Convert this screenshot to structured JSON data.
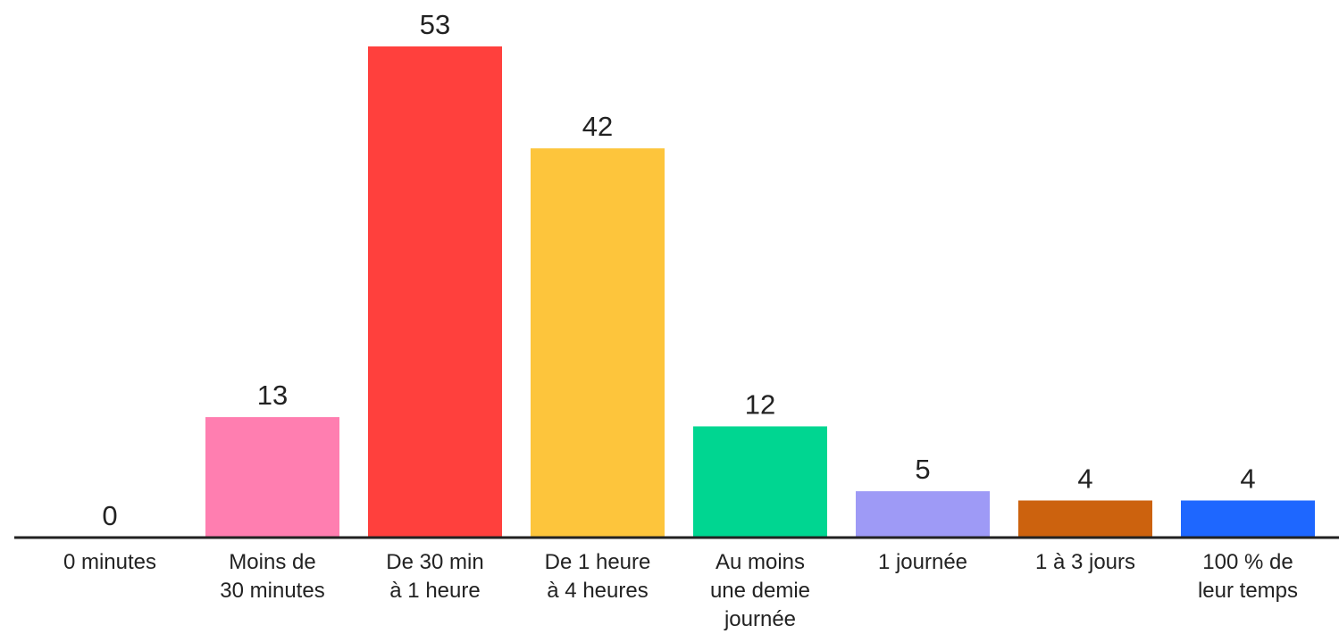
{
  "chart_data": {
    "type": "bar",
    "title": "",
    "xlabel": "",
    "ylabel": "",
    "ylim": [
      0,
      53
    ],
    "grid": false,
    "legend": "none",
    "categories": [
      [
        "0 minutes"
      ],
      [
        "Moins de",
        "30 minutes"
      ],
      [
        "De 30 min",
        "à 1 heure"
      ],
      [
        "De 1 heure",
        "à 4 heures"
      ],
      [
        "Au moins",
        "une demie",
        "journée"
      ],
      [
        "1 journée"
      ],
      [
        "1 à 3 jours"
      ],
      [
        "100 % de",
        "leur temps"
      ]
    ],
    "values": [
      0,
      13,
      53,
      42,
      12,
      5,
      4,
      4
    ],
    "value_labels": [
      "0",
      "13",
      "53",
      "42",
      "12",
      "5",
      "4",
      "4"
    ],
    "colors": [
      "#ff7eb0",
      "#ff7eb0",
      "#ff403d",
      "#fdc53c",
      "#00d691",
      "#9e9af6",
      "#cc620e",
      "#1e67ff"
    ],
    "axis_color": "#222222"
  }
}
